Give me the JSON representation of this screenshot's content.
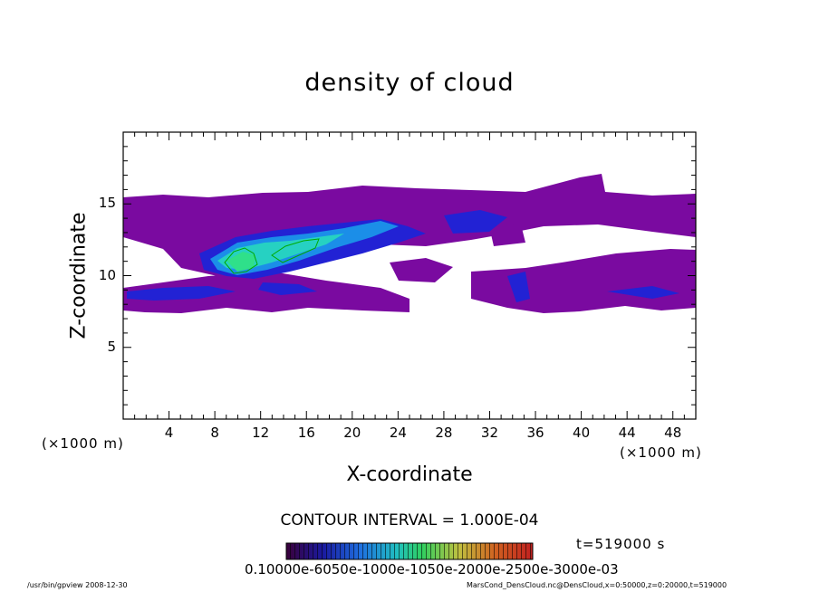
{
  "chart_data": {
    "type": "heatmap",
    "title": "density of cloud",
    "xlabel": "X-coordinate",
    "ylabel": "Z-coordinate",
    "x_unit": "(×1000 m)",
    "y_unit": "(×1000 m)",
    "xlim": [
      0,
      50
    ],
    "ylim": [
      0,
      20
    ],
    "x_ticks": [
      4,
      8,
      12,
      16,
      20,
      24,
      28,
      32,
      36,
      40,
      44,
      48
    ],
    "y_ticks": [
      5,
      10,
      15
    ],
    "contour_interval": "CONTOUR INTERVAL = 1.000E-04",
    "time": "t=519000 s",
    "colorbar_labels": "0.10000e-6050e-1000e-1050e-2000e-2500e-3000e-03",
    "colors": {
      "low": "#7a0aa0",
      "mid_low": "#2222d4",
      "mid": "#1b8ee8",
      "high": "#26d1c2",
      "max": "#2fe08a",
      "contour": "#00aa00"
    },
    "cloud_bands": [
      {
        "level": 1,
        "z_range": [
          7.5,
          15.5
        ],
        "x_range": [
          0,
          50
        ]
      },
      {
        "level": 2,
        "z_range": [
          8.5,
          14
        ],
        "x_range": [
          6,
          24
        ]
      },
      {
        "level": 3,
        "z_range": [
          10,
          13.5
        ],
        "x_range": [
          8,
          20
        ]
      },
      {
        "level": 4,
        "z_range": [
          10.5,
          13
        ],
        "x_range": [
          9,
          18
        ]
      }
    ]
  },
  "footer": {
    "left": "/usr/bin/gpview  2008-12-30",
    "right": "MarsCond_DensCloud.nc@DensCloud,x=0:50000,z=0:20000,t=519000"
  }
}
